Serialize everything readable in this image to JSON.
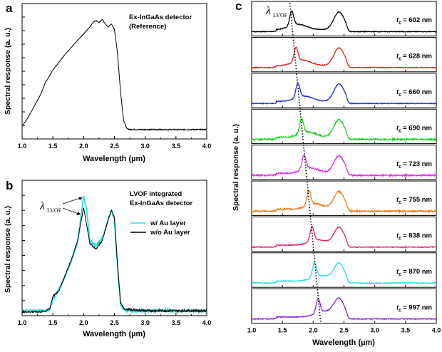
{
  "chart_data": [
    {
      "panel": "a",
      "type": "line",
      "xlabel": "Wavelength (µm)",
      "ylabel": "Spectral response (a. u.)",
      "xlim": [
        1.0,
        4.0
      ],
      "xticks": [
        "1.0",
        "1.5",
        "2.0",
        "2.5",
        "3.0",
        "3.5",
        "4.0"
      ],
      "annotation": [
        "Ex-InGaAs detector",
        "(Reference)"
      ],
      "series": [
        {
          "name": "Reference",
          "color": "#000000",
          "x": [
            1.0,
            1.1,
            1.2,
            1.3,
            1.38,
            1.45,
            1.5,
            1.6,
            1.7,
            1.8,
            1.9,
            2.0,
            2.1,
            2.15,
            2.2,
            2.25,
            2.3,
            2.35,
            2.4,
            2.45,
            2.5,
            2.55,
            2.6,
            2.65,
            2.7,
            2.75,
            2.8,
            3.0,
            3.5,
            4.0
          ],
          "y": [
            0.05,
            0.13,
            0.23,
            0.33,
            0.44,
            0.5,
            0.55,
            0.62,
            0.69,
            0.75,
            0.81,
            0.87,
            0.93,
            0.97,
            0.99,
            0.97,
            1.0,
            0.96,
            0.93,
            0.96,
            0.91,
            0.7,
            0.35,
            0.1,
            0.03,
            0.02,
            0.02,
            0.02,
            0.02,
            0.02
          ]
        }
      ]
    },
    {
      "panel": "b",
      "type": "line",
      "xlabel": "Wavelength (µm)",
      "ylabel": "Spectral response (a. u.)",
      "xlim": [
        1.0,
        4.0
      ],
      "xticks": [
        "1.0",
        "1.5",
        "2.0",
        "2.5",
        "3.0",
        "3.5",
        "4.0"
      ],
      "annotation": [
        "LVOF integrated",
        "Ex-InGaAs detector"
      ],
      "peak_label": "λ",
      "peak_label_sub": "LVOF",
      "legend": [
        "w/ Au layer",
        "w/o Au layer"
      ],
      "series": [
        {
          "name": "w/ Au layer",
          "color": "#2ee0e0",
          "x": [
            1.0,
            1.3,
            1.4,
            1.45,
            1.5,
            1.6,
            1.7,
            1.8,
            1.9,
            1.95,
            2.0,
            2.05,
            2.1,
            2.2,
            2.3,
            2.4,
            2.45,
            2.5,
            2.55,
            2.6,
            2.65,
            2.7,
            3.0,
            4.0
          ],
          "y": [
            0.03,
            0.03,
            0.03,
            0.04,
            0.12,
            0.22,
            0.32,
            0.45,
            0.6,
            0.8,
            1.0,
            0.88,
            0.62,
            0.58,
            0.64,
            0.8,
            0.88,
            0.8,
            0.4,
            0.08,
            0.04,
            0.03,
            0.03,
            0.03
          ]
        },
        {
          "name": "w/o Au layer",
          "color": "#000000",
          "x": [
            1.0,
            1.3,
            1.4,
            1.45,
            1.5,
            1.6,
            1.7,
            1.8,
            1.9,
            1.95,
            2.0,
            2.05,
            2.1,
            2.2,
            2.3,
            2.4,
            2.45,
            2.5,
            2.55,
            2.6,
            2.65,
            2.7,
            3.0,
            4.0
          ],
          "y": [
            0.02,
            0.02,
            0.03,
            0.05,
            0.15,
            0.2,
            0.33,
            0.46,
            0.62,
            0.76,
            0.9,
            0.75,
            0.6,
            0.55,
            0.62,
            0.8,
            0.88,
            0.82,
            0.42,
            0.1,
            0.05,
            0.04,
            0.03,
            0.03
          ]
        }
      ]
    },
    {
      "panel": "c",
      "type": "line",
      "xlabel": "Wavelength (µm)",
      "ylabel": "Spectral response (a. u.)",
      "xlim": [
        1.0,
        4.0
      ],
      "xticks": [
        "1.0",
        "1.5",
        "2.0",
        "2.5",
        "3.0",
        "3.5",
        "4.0"
      ],
      "peak_label": "λ",
      "peak_label_sub": "LVOF",
      "tc_symbol": "t",
      "tc_sub": "c",
      "stacks": [
        {
          "label": "= 602 nm",
          "color": "#000000",
          "peak": 1.65
        },
        {
          "label": "= 628 nm",
          "color": "#e8201e",
          "peak": 1.72
        },
        {
          "label": "= 660 nm",
          "color": "#1f2ad6",
          "peak": 1.75
        },
        {
          "label": "= 690 nm",
          "color": "#22d02a",
          "peak": 1.81
        },
        {
          "label": "= 723 nm",
          "color": "#e030e0",
          "peak": 1.85
        },
        {
          "label": "= 755 nm",
          "color": "#f08020",
          "peak": 1.93
        },
        {
          "label": "= 838 nm",
          "color": "#e0206e",
          "peak": 1.98
        },
        {
          "label": "= 870 nm",
          "color": "#20e0e0",
          "peak": 2.02
        },
        {
          "label": "= 997 nm",
          "color": "#8020d0",
          "peak": 2.08
        }
      ]
    }
  ]
}
